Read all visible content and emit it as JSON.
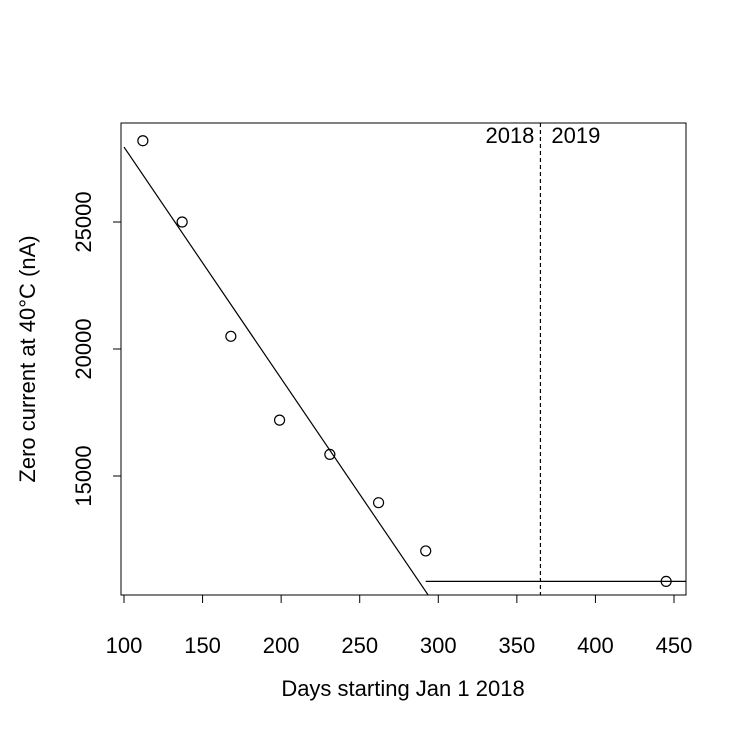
{
  "chart_data": {
    "type": "scatter",
    "title": "",
    "xlabel": "Days starting Jan 1 2018",
    "ylabel": "Zero current at 40°C  (nA)",
    "xlim": [
      100,
      458
    ],
    "ylim": [
      10000,
      28600
    ],
    "xticks": [
      100,
      150,
      200,
      250,
      300,
      350,
      400,
      450
    ],
    "yticks": [
      15000,
      20000,
      25000
    ],
    "grid": false,
    "points": [
      {
        "x": 112,
        "y": 28200
      },
      {
        "x": 137,
        "y": 25000
      },
      {
        "x": 168,
        "y": 20500
      },
      {
        "x": 199,
        "y": 17200
      },
      {
        "x": 231,
        "y": 15850
      },
      {
        "x": 262,
        "y": 13950
      },
      {
        "x": 292,
        "y": 12050
      },
      {
        "x": 445,
        "y": 10850
      }
    ],
    "fit_lines": [
      {
        "points": [
          [
            100,
            27950
          ],
          [
            297,
            10000
          ]
        ]
      },
      {
        "points": [
          [
            292,
            10850
          ],
          [
            458,
            10850
          ]
        ]
      }
    ],
    "reference_line": {
      "x": 365,
      "style": "dashed"
    },
    "annotations": [
      {
        "text": "2018",
        "position": "left of divider"
      },
      {
        "text": "2019",
        "position": "right of divider"
      }
    ]
  }
}
